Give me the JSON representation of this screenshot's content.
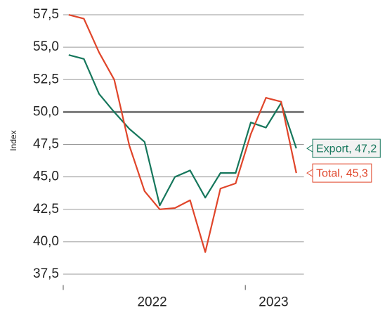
{
  "chart_data": {
    "type": "line",
    "y_label": "Index",
    "categories": [
      null,
      null,
      null,
      null,
      null,
      null,
      null,
      null,
      null,
      null,
      null,
      null,
      null,
      null,
      null,
      null
    ],
    "year_groups": [
      {
        "label": "2022",
        "count": 12
      },
      {
        "label": "2023",
        "count": 4
      }
    ],
    "series": [
      {
        "name": "Export",
        "color": "#16775c",
        "end_label": "Export, 47,2",
        "values": [
          54.4,
          54.1,
          51.4,
          50.0,
          48.7,
          47.7,
          42.8,
          45.0,
          45.5,
          43.4,
          45.3,
          45.3,
          49.2,
          48.8,
          50.7,
          47.2
        ]
      },
      {
        "name": "Total",
        "color": "#e0452a",
        "end_label": "Total, 45,3",
        "values": [
          57.5,
          57.2,
          54.6,
          52.5,
          47.4,
          43.9,
          42.5,
          42.6,
          43.2,
          39.2,
          44.1,
          44.5,
          48.3,
          51.1,
          50.8,
          45.3
        ]
      }
    ],
    "reference_line": 50,
    "ylim": [
      36.5,
      58
    ],
    "yticks": [
      {
        "value": 37.5,
        "label": "37,5"
      },
      {
        "value": 40,
        "label": "40,0"
      },
      {
        "value": 42.5,
        "label": "42,5"
      },
      {
        "value": 45,
        "label": "45,0"
      },
      {
        "value": 47.5,
        "label": "47,5"
      },
      {
        "value": 50,
        "label": "50,0"
      },
      {
        "value": 52.5,
        "label": "52,5"
      },
      {
        "value": 55,
        "label": "55,0"
      },
      {
        "value": 57.5,
        "label": "57,5"
      }
    ],
    "grid": true
  }
}
